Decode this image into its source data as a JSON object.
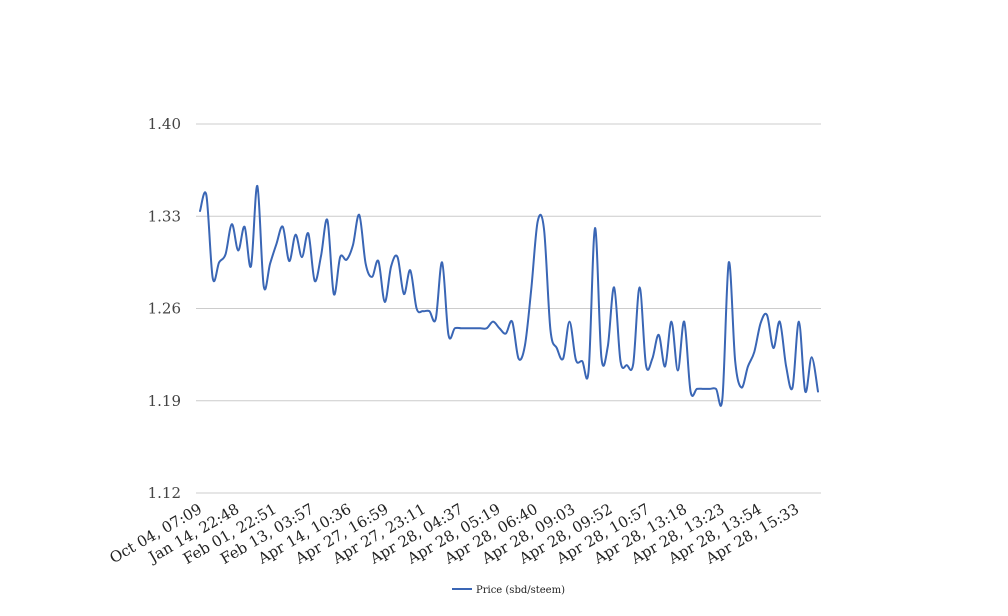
{
  "colors": {
    "line": "#3a66b5",
    "grid": "#cccccc",
    "background": "#ffffff"
  },
  "chart_data": {
    "type": "line",
    "title": "",
    "xlabel": "",
    "ylabel": "",
    "ylim": [
      1.12,
      1.4
    ],
    "yticks": [
      "1.40",
      "1.33",
      "1.26",
      "1.19",
      "1.12"
    ],
    "grid": true,
    "legend_placement": "bottom-center",
    "x_tick_labels": [
      "Oct 04, 07:09",
      "Jan 14, 22:48",
      "Feb 01, 22:51",
      "Feb 13, 03:57",
      "Apr 14, 10:36",
      "Apr 27, 16:59",
      "Apr 27, 23:11",
      "Apr 28, 04:37",
      "Apr 28, 05:19",
      "Apr 28, 06:40",
      "Apr 28, 09:03",
      "Apr 28, 09:52",
      "Apr 28, 10:57",
      "Apr 28, 13:18",
      "Apr 28, 13:23",
      "Apr 28, 13:54",
      "Apr 28, 15:33"
    ],
    "series": [
      {
        "name": "Price (sbd/steem)",
        "values": [
          1.334,
          1.346,
          1.283,
          1.295,
          1.301,
          1.324,
          1.304,
          1.322,
          1.292,
          1.353,
          1.277,
          1.294,
          1.309,
          1.322,
          1.296,
          1.316,
          1.299,
          1.317,
          1.281,
          1.3,
          1.327,
          1.271,
          1.299,
          1.297,
          1.308,
          1.331,
          1.294,
          1.284,
          1.296,
          1.265,
          1.292,
          1.299,
          1.271,
          1.289,
          1.26,
          1.258,
          1.258,
          1.252,
          1.295,
          1.24,
          1.245,
          1.245,
          1.245,
          1.245,
          1.245,
          1.245,
          1.25,
          1.245,
          1.241,
          1.25,
          1.222,
          1.232,
          1.275,
          1.326,
          1.32,
          1.244,
          1.23,
          1.222,
          1.25,
          1.221,
          1.22,
          1.213,
          1.321,
          1.223,
          1.231,
          1.276,
          1.22,
          1.217,
          1.218,
          1.276,
          1.217,
          1.222,
          1.24,
          1.216,
          1.25,
          1.213,
          1.25,
          1.197,
          1.199,
          1.199,
          1.199,
          1.199,
          1.192,
          1.295,
          1.22,
          1.2,
          1.216,
          1.227,
          1.249,
          1.255,
          1.23,
          1.25,
          1.216,
          1.2,
          1.25,
          1.197,
          1.223,
          1.197
        ]
      }
    ]
  }
}
